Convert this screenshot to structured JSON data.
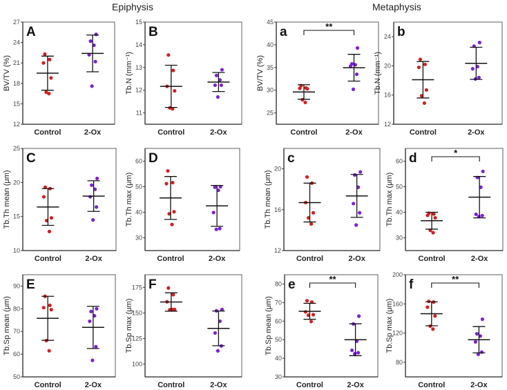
{
  "sections": {
    "left": "Epiphysis",
    "right": "Metaphysis"
  },
  "colors": {
    "control": "#d42020",
    "treated": "#7a22d8",
    "bars": "#111111",
    "frame": "#555555"
  },
  "chart_data": [
    {
      "id": "A",
      "type": "scatter",
      "ylabel": "BV/TV (%)",
      "ylim": [
        12,
        27
      ],
      "yticks": [
        12,
        15,
        18,
        21,
        24,
        27
      ],
      "categories": [
        "Control",
        "2-Ox"
      ],
      "series": [
        {
          "name": "Control",
          "values": [
            22.3,
            21.5,
            21.0,
            18.8,
            16.7,
            16.5
          ],
          "mean": 19.5,
          "sd": 2.5
        },
        {
          "name": "2-Ox",
          "values": [
            25.2,
            24.2,
            23.6,
            22.2,
            21.2,
            17.6
          ],
          "mean": 22.4,
          "sd": 2.7
        }
      ],
      "significance": ""
    },
    {
      "id": "B",
      "type": "scatter",
      "ylabel": "Tb.N (mm⁻¹)",
      "ylim": [
        10.5,
        15
      ],
      "yticks": [
        11,
        12,
        13,
        14,
        15
      ],
      "categories": [
        "Control",
        "2-Ox"
      ],
      "series": [
        {
          "name": "Control",
          "values": [
            13.55,
            12.87,
            12.17,
            11.97,
            11.22,
            11.18
          ],
          "mean": 12.17,
          "sd": 0.93
        },
        {
          "name": "2-Ox",
          "values": [
            12.9,
            12.65,
            12.45,
            12.22,
            12.22,
            11.7
          ],
          "mean": 12.36,
          "sd": 0.42
        }
      ],
      "significance": ""
    },
    {
      "id": "a",
      "type": "scatter",
      "ylabel": "BV/TV (%)",
      "ylim": [
        22.5,
        45
      ],
      "yticks": [
        25,
        30,
        35,
        40,
        45
      ],
      "categories": [
        "Control",
        "2-Ox"
      ],
      "series": [
        {
          "name": "Control",
          "values": [
            31.0,
            30.5,
            30.4,
            30.3,
            27.9,
            27.3
          ],
          "mean": 29.6,
          "sd": 1.6
        },
        {
          "name": "2-Ox",
          "values": [
            39.3,
            35.8,
            35.6,
            35.3,
            33.5,
            30.2
          ],
          "mean": 34.95,
          "sd": 2.95
        }
      ],
      "significance": "**"
    },
    {
      "id": "b",
      "type": "scatter",
      "ylabel": "Tb.N (mm⁻¹)",
      "ylim": [
        12,
        26
      ],
      "yticks": [
        12,
        16,
        20,
        24
      ],
      "categories": [
        "Control",
        "2-Ox"
      ],
      "series": [
        {
          "name": "Control",
          "values": [
            20.9,
            20.2,
            19.8,
            16.7,
            15.9,
            14.9
          ],
          "mean": 18.1,
          "sd": 2.5
        },
        {
          "name": "2-Ox",
          "values": [
            23.2,
            22.7,
            19.9,
            19.6,
            18.4,
            18.2
          ],
          "mean": 20.35,
          "sd": 2.2
        }
      ],
      "significance": ""
    },
    {
      "id": "C",
      "type": "scatter",
      "ylabel": "Tb.Th mean (μm)",
      "ylim": [
        10,
        25
      ],
      "yticks": [
        10,
        15,
        20,
        25
      ],
      "categories": [
        "Control",
        "2-Ox"
      ],
      "series": [
        {
          "name": "Control",
          "values": [
            19.3,
            19.1,
            17.9,
            14.8,
            14.4,
            12.8
          ],
          "mean": 16.4,
          "sd": 2.7
        },
        {
          "name": "2-Ox",
          "values": [
            20.6,
            19.6,
            19.0,
            17.9,
            16.4,
            14.5
          ],
          "mean": 18.0,
          "sd": 2.25
        }
      ],
      "significance": ""
    },
    {
      "id": "D",
      "type": "scatter",
      "ylabel": "Tb.Th max (μm)",
      "ylim": [
        25,
        65
      ],
      "yticks": [
        30,
        40,
        50,
        60
      ],
      "categories": [
        "Control",
        "2-Ox"
      ],
      "series": [
        {
          "name": "Control",
          "values": [
            56.2,
            51.6,
            51.2,
            40.2,
            39.4,
            35.2
          ],
          "mean": 45.6,
          "sd": 8.4
        },
        {
          "name": "2-Ox",
          "values": [
            50.0,
            49.8,
            48.6,
            39.9,
            33.6,
            33.3
          ],
          "mean": 42.5,
          "sd": 8.0
        }
      ],
      "significance": ""
    },
    {
      "id": "c",
      "type": "scatter",
      "ylabel": "Tb.Th mean (μm)",
      "ylim": [
        12,
        22
      ],
      "yticks": [
        12,
        16,
        20
      ],
      "categories": [
        "Control",
        "2-Ox"
      ],
      "series": [
        {
          "name": "Control",
          "values": [
            19.2,
            18.6,
            16.7,
            15.7,
            15.2,
            14.6
          ],
          "mean": 16.7,
          "sd": 1.9
        },
        {
          "name": "2-Ox",
          "values": [
            19.7,
            19.4,
            18.2,
            16.6,
            15.7,
            14.5
          ],
          "mean": 17.35,
          "sd": 2.1
        }
      ],
      "significance": ""
    },
    {
      "id": "d",
      "type": "scatter",
      "ylabel": "Tb.Th max (μm)",
      "ylim": [
        25,
        65
      ],
      "yticks": [
        30,
        40,
        50,
        60
      ],
      "categories": [
        "Control",
        "2-Ox"
      ],
      "series": [
        {
          "name": "Control",
          "values": [
            39.6,
            39.3,
            38.8,
            37.8,
            32.9,
            32.0
          ],
          "mean": 36.7,
          "sd": 3.3
        },
        {
          "name": "2-Ox",
          "values": [
            56.0,
            53.6,
            49.8,
            39.2,
            38.7,
            38.3
          ],
          "mean": 45.9,
          "sd": 8.1
        }
      ],
      "significance": "*"
    },
    {
      "id": "E",
      "type": "scatter",
      "ylabel": "Tb.Sp mean (μm)",
      "ylim": [
        50,
        95
      ],
      "yticks": [
        50,
        60,
        70,
        80,
        90
      ],
      "categories": [
        "Control",
        "2-Ox"
      ],
      "series": [
        {
          "name": "Control",
          "values": [
            85.5,
            81.5,
            80.5,
            79.6,
            66.0,
            61.5
          ],
          "mean": 75.8,
          "sd": 9.7
        },
        {
          "name": "2-Ox",
          "values": [
            80.0,
            78.8,
            76.9,
            74.5,
            63.3,
            57.3
          ],
          "mean": 71.8,
          "sd": 9.3
        }
      ],
      "significance": ""
    },
    {
      "id": "F",
      "type": "scatter",
      "ylabel": "Tb.Sp max (μm)",
      "ylim": [
        87.5,
        187.5
      ],
      "yticks": [
        100,
        125,
        150,
        175
      ],
      "categories": [
        "Control",
        "2-Ox"
      ],
      "series": [
        {
          "name": "Control",
          "values": [
            174.5,
            168,
            161,
            153.5,
            153.2,
            153.5
          ],
          "mean": 160.8,
          "sd": 9.0
        },
        {
          "name": "2-Ox",
          "values": [
            153.5,
            152.2,
            142,
            130.5,
            117.8,
            113
          ],
          "mean": 135,
          "sd": 17.0
        }
      ],
      "significance": ""
    },
    {
      "id": "e",
      "type": "scatter",
      "ylabel": "Tb.Sp mean (μm)",
      "ylim": [
        30,
        85
      ],
      "yticks": [
        30,
        40,
        50,
        60,
        70,
        80
      ],
      "categories": [
        "Control",
        "2-Ox"
      ],
      "series": [
        {
          "name": "Control",
          "values": [
            71.0,
            70.3,
            65.0,
            63.5,
            63.2,
            59.8
          ],
          "mean": 65.3,
          "sd": 4.3
        },
        {
          "name": "2-Ox",
          "values": [
            62.7,
            58.5,
            49.2,
            44.3,
            43.0,
            42.5
          ],
          "mean": 50.0,
          "sd": 8.6
        }
      ],
      "significance": "**"
    },
    {
      "id": "f",
      "type": "scatter",
      "ylabel": "Tb.Sp max (μm)",
      "ylim": [
        60,
        200
      ],
      "yticks": [
        80,
        120,
        160,
        200
      ],
      "categories": [
        "Control",
        "2-Ox"
      ],
      "series": [
        {
          "name": "Control",
          "values": [
            163.5,
            162.5,
            155.5,
            143.5,
            129.5,
            125.5
          ],
          "mean": 146.5,
          "sd": 16.5
        },
        {
          "name": "2-Ox",
          "values": [
            139,
            119,
            116,
            108,
            94,
            91
          ],
          "mean": 111,
          "sd": 18.0
        }
      ],
      "significance": "**"
    }
  ]
}
